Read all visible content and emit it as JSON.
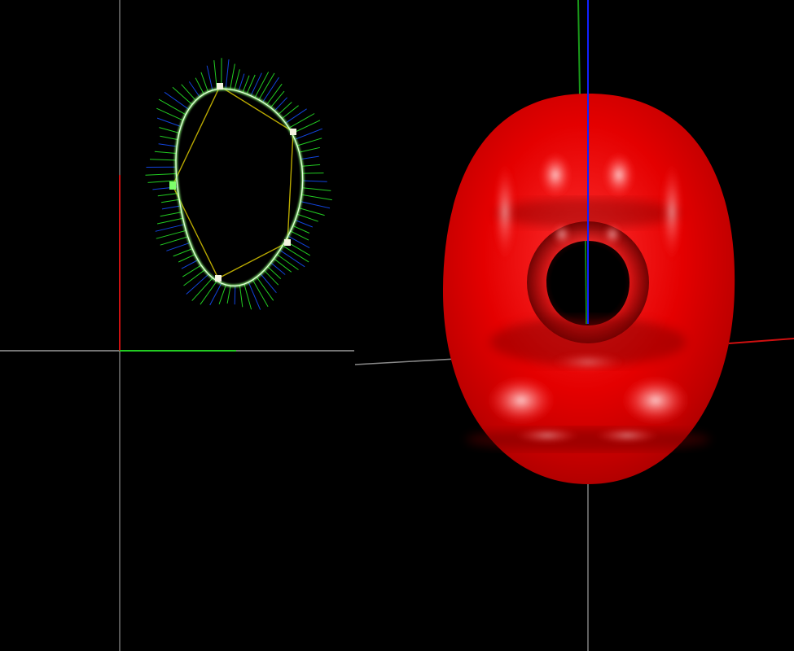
{
  "app": {
    "type": "3d-viewport",
    "background": "#000000"
  },
  "left_view": {
    "name": "curve-editor-view",
    "axes": {
      "x_color": "#22cc22",
      "y_color": "#cc1111",
      "grid_color": "#9a9a9a"
    },
    "curve": {
      "color": "#7dff6a",
      "normal_color_a": "#22cc22",
      "normal_color_b": "#1144dd",
      "control_polygon_color": "#b8a800",
      "control_point_color": "#f4f4e0"
    }
  },
  "right_view": {
    "name": "surface-preview-view",
    "surface": {
      "kind": "torus",
      "color": "#e00000"
    },
    "axes": {
      "x_color": "#d01010",
      "y_color": "#1a9a1a",
      "z_color": "#1020ff",
      "grid_color": "#8a8a8a"
    }
  }
}
